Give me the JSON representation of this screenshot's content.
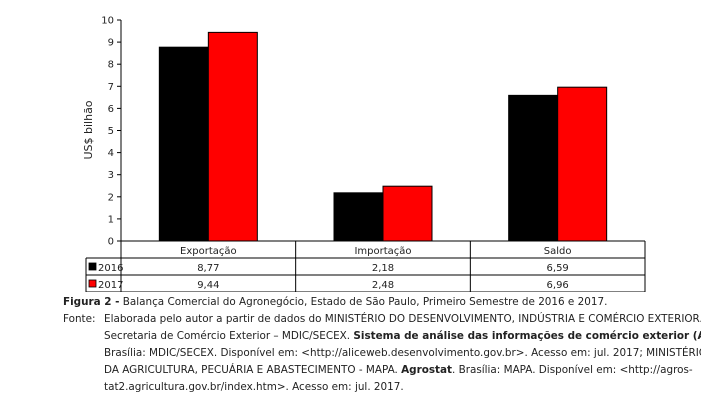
{
  "chart_data": {
    "type": "bar",
    "categories": [
      "Exportação",
      "Importação",
      "Saldo"
    ],
    "series": [
      {
        "name": "2016",
        "color": "#000000",
        "values": [
          8.77,
          2.18,
          6.59
        ],
        "labels": [
          "8,77",
          "2,18",
          "6,59"
        ]
      },
      {
        "name": "2017",
        "color": "#ff0000",
        "values": [
          9.44,
          2.48,
          6.96
        ],
        "labels": [
          "9,44",
          "2,48",
          "6,96"
        ]
      }
    ],
    "ylabel": "US$ bilhão",
    "ylim": [
      0,
      10
    ],
    "yticks": [
      "0",
      "1",
      "2",
      "3",
      "4",
      "5",
      "6",
      "7",
      "8",
      "9",
      "10"
    ],
    "grid": false,
    "legend": "data-table"
  },
  "caption": {
    "figure_label": "Figura 2 -",
    "figure_text": "Balança Comercial do Agronegócio, Estado de São Paulo, Primeiro Semestre de 2016 e 2017.",
    "source_label": "Fonte:",
    "line1": "Elaborada pelo autor a partir de dados do MINISTÉRIO DO DESENVOLVIMENTO, INDÚSTRIA E COMÉRCIO EXTERIOR.",
    "line2_a": "Secretaria de Comércio Exterior – MDIC/SECEX.",
    "line2_b": "Sistema de análise das informações de comércio exterior (ALICE)",
    "line3": "Brasília: MDIC/SECEX. Disponível em: <http://aliceweb.desenvolvimento.gov.br>. Acesso em: jul. 2017; MINISTÉRIO",
    "line4_a": "DA AGRICULTURA, PECUÁRIA E ABASTECIMENTO - MAPA.",
    "line4_b": "Agrostat",
    "line4_c": ". Brasília: MAPA. Disponível em: <http://agros-",
    "line5": "tat2.agricultura.gov.br/index.htm>. Acesso em: jul. 2017."
  }
}
